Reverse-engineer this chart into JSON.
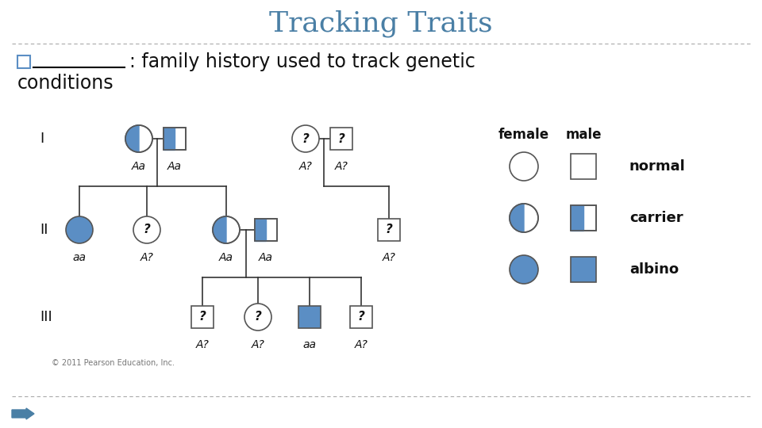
{
  "title": "Tracking Traits",
  "title_color": "#4a7fa5",
  "title_fontsize": 26,
  "bg_color": "#ffffff",
  "blue": "#5b8ec4",
  "dashed_line_color": "#aaaaaa",
  "text_color": "#111111",
  "legend_female_label": "female",
  "legend_male_label": "male",
  "legend_normal_label": "normal",
  "legend_carrier_label": "carrier",
  "legend_albino_label": "albino",
  "copyright": "© 2011 Pearson Education, Inc.",
  "bottom_arrow_color": "#4a7fa5",
  "gen_labels": [
    "I",
    "II",
    "III"
  ],
  "subtitle_line1": ": family history used to track genetic",
  "subtitle_line2": "conditions"
}
